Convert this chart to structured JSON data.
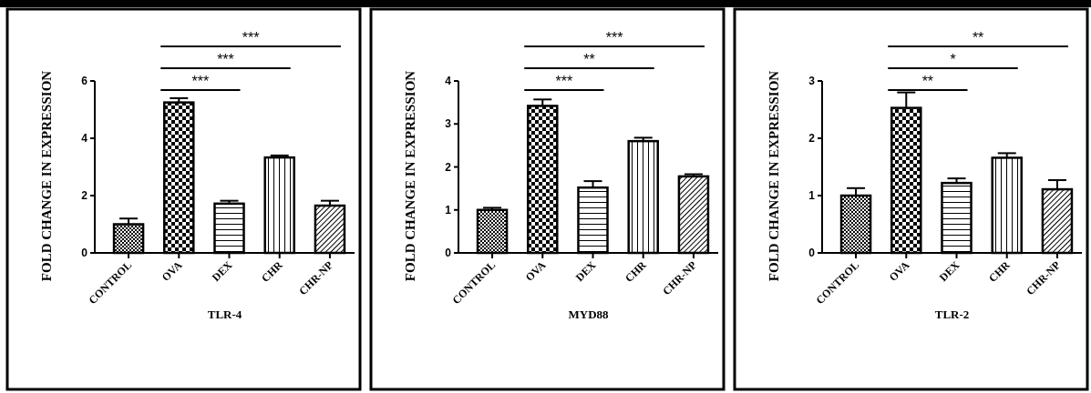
{
  "chart_data": [
    {
      "type": "bar",
      "xlabel": "TLR-4",
      "ylabel": "FOLD CHANGE IN EXPRESSION",
      "categories": [
        "CONTROL",
        "OVA",
        "DEX",
        "CHR",
        "CHR-NP"
      ],
      "values": [
        1.0,
        5.25,
        1.72,
        3.33,
        1.65
      ],
      "errors": [
        0.2,
        0.15,
        0.1,
        0.07,
        0.17
      ],
      "color": "#000000",
      "ylim": [
        0,
        6
      ],
      "yticks": [
        0,
        2,
        4,
        6
      ],
      "annotations": [
        "***",
        "***",
        "***"
      ]
    },
    {
      "type": "bar",
      "xlabel": "MYD88",
      "ylabel": "FOLD CHANGE IN EXPRESSION",
      "categories": [
        "CONTROL",
        "OVA",
        "DEX",
        "CHR",
        "CHR-NP"
      ],
      "values": [
        1.0,
        3.42,
        1.52,
        2.6,
        1.78
      ],
      "errors": [
        0.05,
        0.15,
        0.15,
        0.08,
        0.05
      ],
      "color": "#000000",
      "ylim": [
        0,
        4
      ],
      "yticks": [
        0,
        1,
        2,
        3,
        4
      ],
      "annotations": [
        "***",
        "**",
        "***"
      ]
    },
    {
      "type": "bar",
      "xlabel": "TLR-2",
      "ylabel": "FOLD CHANGE IN EXPRESSION",
      "categories": [
        "CONTROL",
        "OVA",
        "DEX",
        "CHR",
        "CHR-NP"
      ],
      "values": [
        1.0,
        2.53,
        1.22,
        1.66,
        1.11
      ],
      "errors": [
        0.13,
        0.27,
        0.08,
        0.08,
        0.16
      ],
      "color": "#000000",
      "ylim": [
        0,
        3
      ],
      "yticks": [
        0,
        1,
        2,
        3
      ],
      "annotations": [
        "**",
        "*",
        "**"
      ]
    }
  ]
}
